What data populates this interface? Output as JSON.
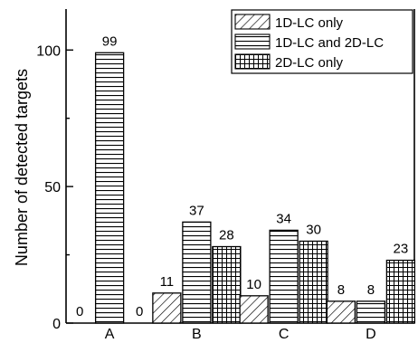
{
  "chart_data": {
    "type": "bar",
    "categories": [
      "A",
      "B",
      "C",
      "D"
    ],
    "series": [
      {
        "name": "1D-LC only",
        "pattern": "diagonal-hatch",
        "values": [
          0,
          11,
          10,
          8
        ]
      },
      {
        "name": "1D-LC and 2D-LC",
        "pattern": "horizontal-lines",
        "values": [
          99,
          37,
          34,
          8
        ]
      },
      {
        "name": "2D-LC only",
        "pattern": "grid",
        "values": [
          0,
          28,
          30,
          23
        ]
      }
    ],
    "data_labels": [
      [
        "0",
        "99",
        "0"
      ],
      [
        "11",
        "37",
        "28"
      ],
      [
        "10",
        "34",
        "30"
      ],
      [
        "8",
        "8",
        "23"
      ]
    ],
    "ylabel": "Number of detected targets",
    "xlabel": "",
    "ylim": [
      0,
      115
    ],
    "yticks": [
      "0",
      "50",
      "100"
    ],
    "grid": false,
    "legend_position": "top-right"
  }
}
